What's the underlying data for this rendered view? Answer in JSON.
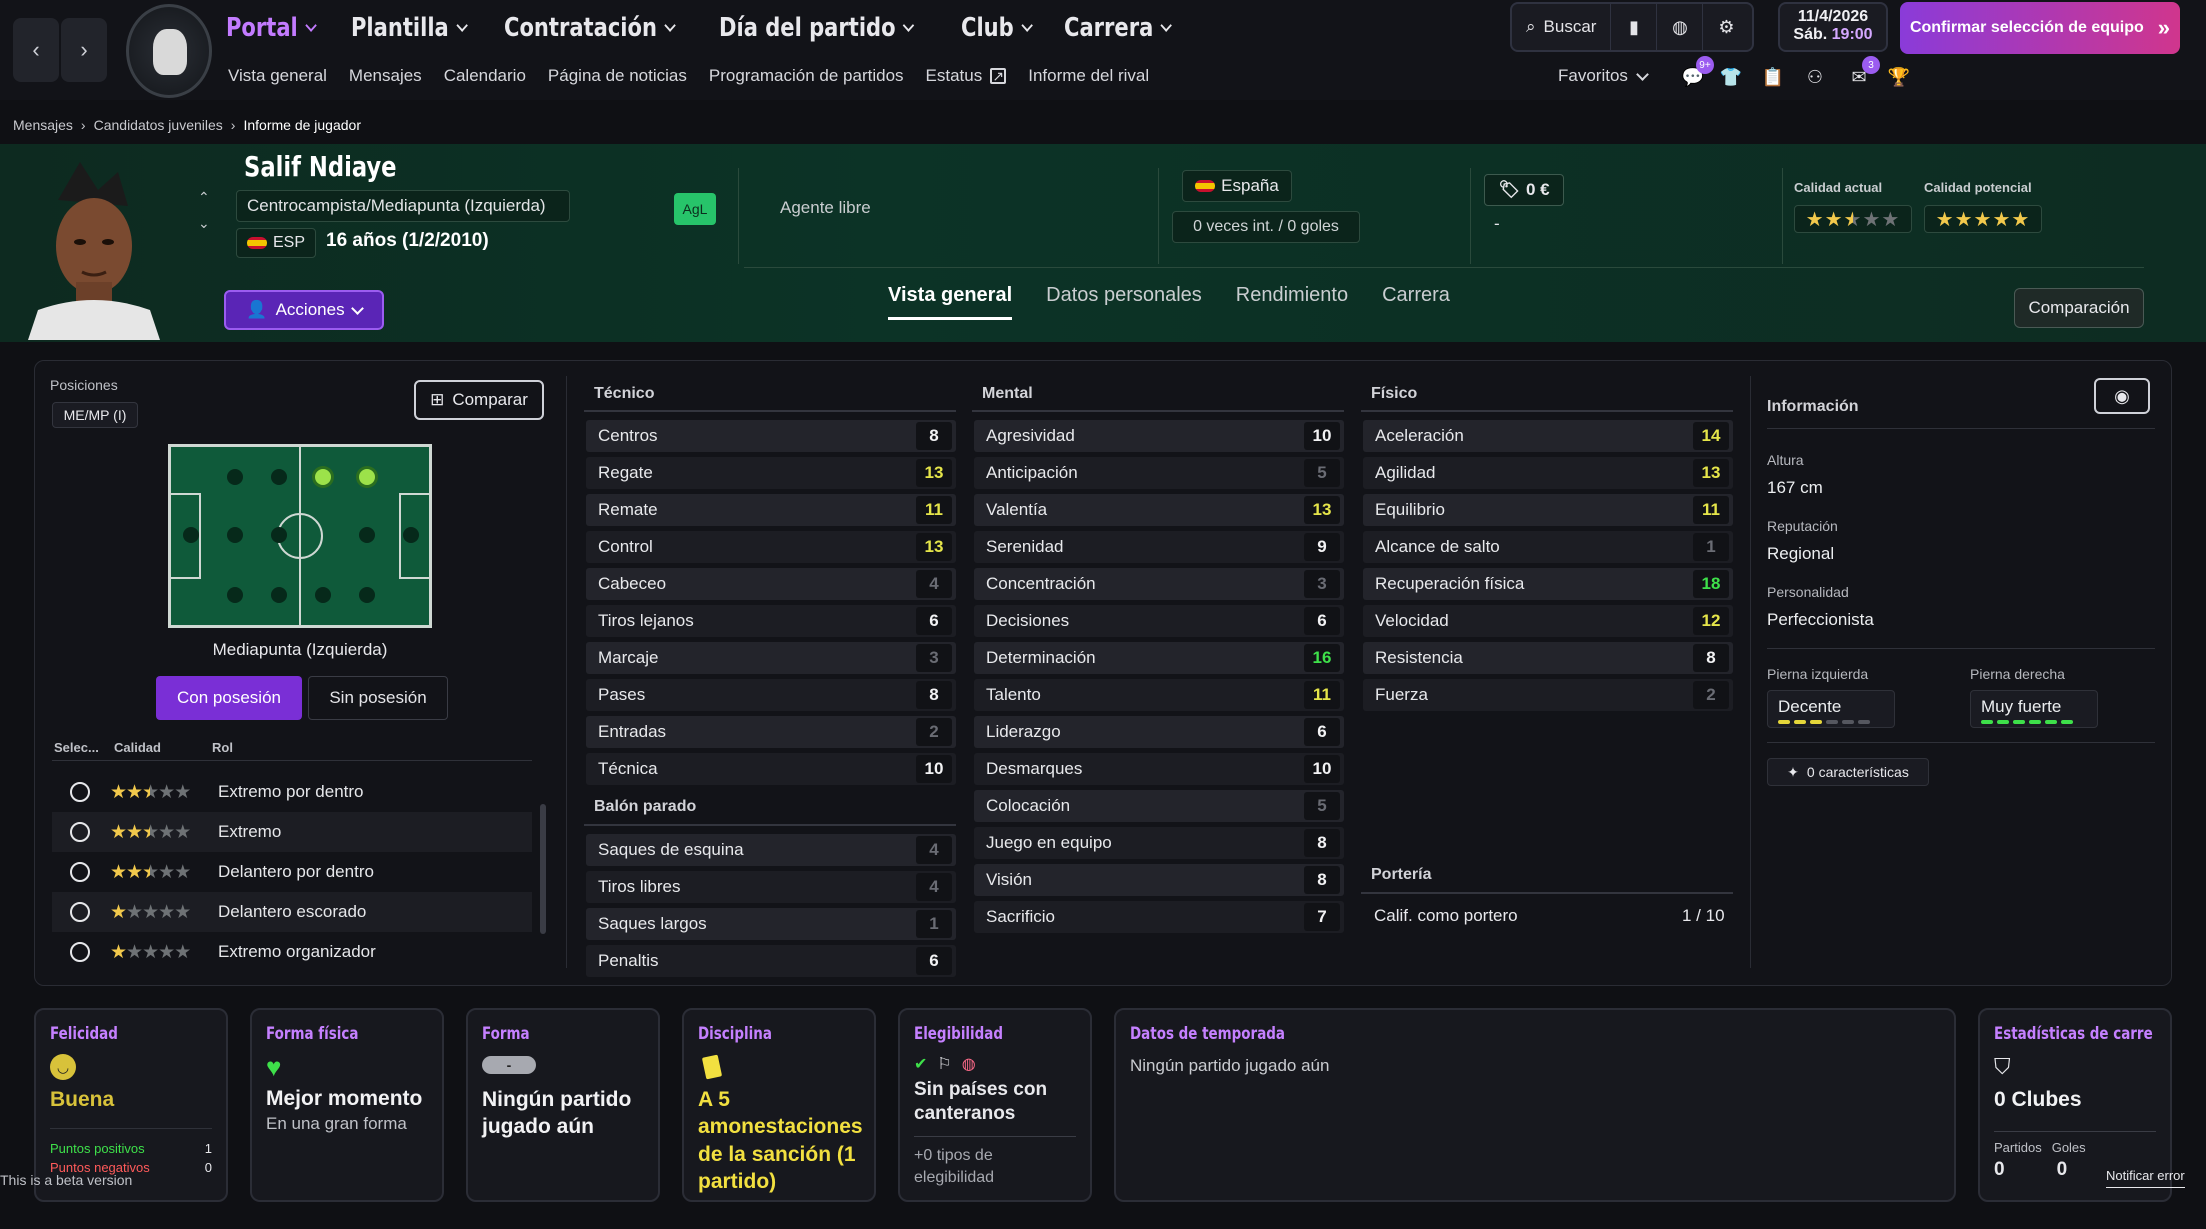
{
  "nav": {
    "main": [
      {
        "label": "Portal",
        "active": true
      },
      {
        "label": "Plantilla"
      },
      {
        "label": "Contratación"
      },
      {
        "label": "Día del partido"
      },
      {
        "label": "Club"
      },
      {
        "label": "Carrera"
      }
    ],
    "sub": [
      "Vista general",
      "Mensajes",
      "Calendario",
      "Página de noticias",
      "Programación de partidos",
      "Estatus",
      "Informe del rival"
    ],
    "search_label": "Buscar",
    "date": "11/4/2026",
    "day": "Sáb.",
    "time": "19:00",
    "confirm_label": "Confirmar selección de equipo",
    "favorites_label": "Favoritos",
    "badges": {
      "chat": "9+",
      "notif": "3"
    }
  },
  "breadcrumb": [
    "Mensajes",
    "Candidatos juveniles",
    "Informe de jugador"
  ],
  "player": {
    "name": "Salif Ndiaye",
    "position": "Centrocampista/Mediapunta (Izquierda)",
    "status_tag": "AgL",
    "nation_code": "ESP",
    "age": "16 años (1/2/2010)",
    "actions_label": "Acciones",
    "contract": "Agente libre",
    "country": "España",
    "intl": "0 veces int. / 0 goles",
    "value": "0 €",
    "value_dash": "-",
    "current_quality_label": "Calidad actual",
    "potential_quality_label": "Calidad potencial",
    "current_stars": 2.5,
    "potential_stars": 5
  },
  "tabs": [
    "Vista general",
    "Datos personales",
    "Rendimiento",
    "Carrera"
  ],
  "compare_header_label": "Comparación",
  "positions": {
    "title": "Posiciones",
    "tag": "ME/MP (I)",
    "compare_label": "Comparar",
    "caption": "Mediapunta (Izquierda)",
    "with_ball": "Con posesión",
    "without_ball": "Sin posesión",
    "col_select": "Selec...",
    "col_quality": "Calidad",
    "col_role": "Rol",
    "roles": [
      {
        "name": "Extremo por dentro",
        "stars": 2.5
      },
      {
        "name": "Extremo",
        "stars": 2.5
      },
      {
        "name": "Delantero por dentro",
        "stars": 2.5
      },
      {
        "name": "Delantero escorado",
        "stars": 1
      },
      {
        "name": "Extremo organizador",
        "stars": 1
      }
    ]
  },
  "attributes": {
    "technical_title": "Técnico",
    "technical": [
      {
        "name": "Centros",
        "value": 8
      },
      {
        "name": "Regate",
        "value": 13
      },
      {
        "name": "Remate",
        "value": 11
      },
      {
        "name": "Control",
        "value": 13
      },
      {
        "name": "Cabeceo",
        "value": 4
      },
      {
        "name": "Tiros lejanos",
        "value": 6
      },
      {
        "name": "Marcaje",
        "value": 3
      },
      {
        "name": "Pases",
        "value": 8
      },
      {
        "name": "Entradas",
        "value": 2
      },
      {
        "name": "Técnica",
        "value": 10
      }
    ],
    "setpieces_title": "Balón parado",
    "setpieces": [
      {
        "name": "Saques de esquina",
        "value": 4
      },
      {
        "name": "Tiros libres",
        "value": 4
      },
      {
        "name": "Saques largos",
        "value": 1
      },
      {
        "name": "Penaltis",
        "value": 6
      }
    ],
    "mental_title": "Mental",
    "mental": [
      {
        "name": "Agresividad",
        "value": 10
      },
      {
        "name": "Anticipación",
        "value": 5
      },
      {
        "name": "Valentía",
        "value": 13
      },
      {
        "name": "Serenidad",
        "value": 9
      },
      {
        "name": "Concentración",
        "value": 3
      },
      {
        "name": "Decisiones",
        "value": 6
      },
      {
        "name": "Determinación",
        "value": 16
      },
      {
        "name": "Talento",
        "value": 11
      },
      {
        "name": "Liderazgo",
        "value": 6
      },
      {
        "name": "Desmarques",
        "value": 10
      },
      {
        "name": "Colocación",
        "value": 5
      },
      {
        "name": "Juego en equipo",
        "value": 8
      },
      {
        "name": "Visión",
        "value": 8
      },
      {
        "name": "Sacrificio",
        "value": 7
      }
    ],
    "physical_title": "Físico",
    "physical": [
      {
        "name": "Aceleración",
        "value": 14
      },
      {
        "name": "Agilidad",
        "value": 13
      },
      {
        "name": "Equilibrio",
        "value": 11
      },
      {
        "name": "Alcance de salto",
        "value": 1
      },
      {
        "name": "Recuperación física",
        "value": 18
      },
      {
        "name": "Velocidad",
        "value": 12
      },
      {
        "name": "Resistencia",
        "value": 8
      },
      {
        "name": "Fuerza",
        "value": 2
      }
    ],
    "gk_title": "Portería",
    "gk_label": "Calif. como portero",
    "gk_value": "1 / 10"
  },
  "info": {
    "title": "Información",
    "height_label": "Altura",
    "height": "167 cm",
    "rep_label": "Reputación",
    "rep": "Regional",
    "pers_label": "Personalidad",
    "pers": "Perfeccionista",
    "left_foot_label": "Pierna izquierda",
    "left_foot": "Decente",
    "left_foot_level": 3,
    "right_foot_label": "Pierna derecha",
    "right_foot": "Muy fuerte",
    "right_foot_level": 6,
    "traits": "0 características"
  },
  "cards": {
    "happiness": {
      "title": "Felicidad",
      "value": "Buena",
      "pos_label": "Puntos positivos",
      "pos": "1",
      "neg_label": "Puntos negativos",
      "neg": "0"
    },
    "fitness": {
      "title": "Forma física",
      "value": "Mejor momento",
      "sub": "En una gran forma"
    },
    "form": {
      "title": "Forma",
      "pill": "-",
      "value": "Ningún partido jugado aún"
    },
    "discipline": {
      "title": "Disciplina",
      "value": "A 5 amonestaciones de la sanción (1 partido)"
    },
    "eligibility": {
      "title": "Elegibilidad",
      "value": "Sin países con canteranos",
      "sub": "+0 tipos de elegibilidad"
    },
    "season": {
      "title": "Datos de temporada",
      "value": "Ningún partido jugado aún"
    },
    "career": {
      "title": "Estadísticas de carrera",
      "value": "0 Clubes",
      "matches_label": "Partidos",
      "goals_label": "Goles",
      "matches": "0",
      "goals": "0"
    }
  },
  "beta_notice": "This is a beta version",
  "report_error": "Notificar error",
  "colors": {
    "accent": "#9b5cf0",
    "green": "#27c46a",
    "yellow": "#e5e54a",
    "star": "#f2c94c"
  }
}
